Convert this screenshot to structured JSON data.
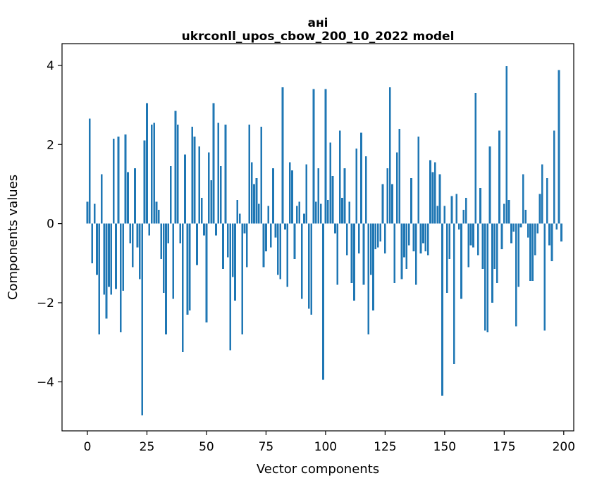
{
  "figure": {
    "background": "#ffffff"
  },
  "chart_data": {
    "type": "bar",
    "title": "ані",
    "subtitle": "ukrconll_upos_cbow_200_10_2022 model",
    "xlabel": "Vector components",
    "ylabel": "Components values",
    "bar_color": "#1f77b4",
    "axis_color": "#000000",
    "grid": false,
    "legend": "none",
    "x_ticks": [
      0,
      25,
      50,
      75,
      100,
      125,
      150,
      175,
      200
    ],
    "y_ticks": [
      -4,
      -2,
      0,
      2,
      4
    ],
    "xlim": [
      -10.65,
      204.2
    ],
    "ylim": [
      -5.24,
      4.55
    ],
    "n_components": 200,
    "values": [
      0.55,
      2.65,
      -1.0,
      0.5,
      -1.3,
      -2.8,
      1.25,
      -1.8,
      -2.4,
      -1.6,
      -1.8,
      2.15,
      -1.65,
      2.2,
      -2.75,
      -1.7,
      2.25,
      1.3,
      -0.5,
      -1.1,
      1.4,
      -0.6,
      -1.4,
      -4.85,
      2.1,
      3.05,
      -0.3,
      2.5,
      2.55,
      0.55,
      0.35,
      -0.9,
      -1.75,
      -2.8,
      -0.5,
      1.45,
      -1.9,
      2.85,
      2.5,
      -0.5,
      -3.25,
      1.75,
      -2.3,
      -2.2,
      2.45,
      2.2,
      -1.05,
      1.95,
      0.65,
      -0.3,
      -2.5,
      1.8,
      1.1,
      3.05,
      -0.3,
      2.55,
      1.45,
      -1.15,
      2.5,
      -0.85,
      -3.2,
      -1.35,
      -1.95,
      0.6,
      0.25,
      -2.8,
      -0.25,
      -1.1,
      2.5,
      1.55,
      1.0,
      1.15,
      0.5,
      2.45,
      -1.1,
      -0.7,
      0.45,
      -0.6,
      1.4,
      -0.35,
      -1.3,
      -1.4,
      3.45,
      -0.15,
      -1.6,
      1.55,
      1.35,
      -0.9,
      0.45,
      0.55,
      -1.9,
      0.25,
      1.5,
      -2.15,
      -2.3,
      3.4,
      0.55,
      1.4,
      0.5,
      -3.95,
      3.4,
      0.6,
      2.05,
      1.2,
      -0.25,
      -1.55,
      2.35,
      0.65,
      1.4,
      -0.8,
      0.55,
      -1.5,
      -1.95,
      1.9,
      -0.75,
      2.3,
      -1.55,
      1.7,
      -2.8,
      -1.3,
      -2.2,
      -0.65,
      -0.6,
      -0.45,
      1.0,
      -0.75,
      1.4,
      3.45,
      1.0,
      -1.5,
      1.8,
      2.4,
      -1.4,
      -0.85,
      -1.15,
      -0.55,
      1.15,
      -0.7,
      -1.55,
      2.2,
      -0.75,
      -0.5,
      -0.7,
      -0.8,
      1.6,
      1.3,
      1.55,
      0.45,
      1.25,
      -4.35,
      0.45,
      -1.75,
      -0.9,
      0.7,
      -3.55,
      0.75,
      -0.15,
      -1.9,
      0.35,
      0.65,
      -1.1,
      -0.55,
      -0.6,
      3.3,
      -0.8,
      0.9,
      -1.15,
      -2.7,
      -2.75,
      1.95,
      -2.0,
      -1.15,
      -1.5,
      2.35,
      -0.65,
      0.5,
      3.98,
      0.6,
      -0.5,
      -0.2,
      -2.6,
      -1.6,
      -0.1,
      1.25,
      0.35,
      -0.35,
      -1.45,
      -1.45,
      -0.8,
      -0.25,
      0.75,
      1.5,
      -2.7,
      1.15,
      -0.55,
      -0.95,
      2.35,
      -0.15,
      3.88,
      -0.45
    ]
  }
}
